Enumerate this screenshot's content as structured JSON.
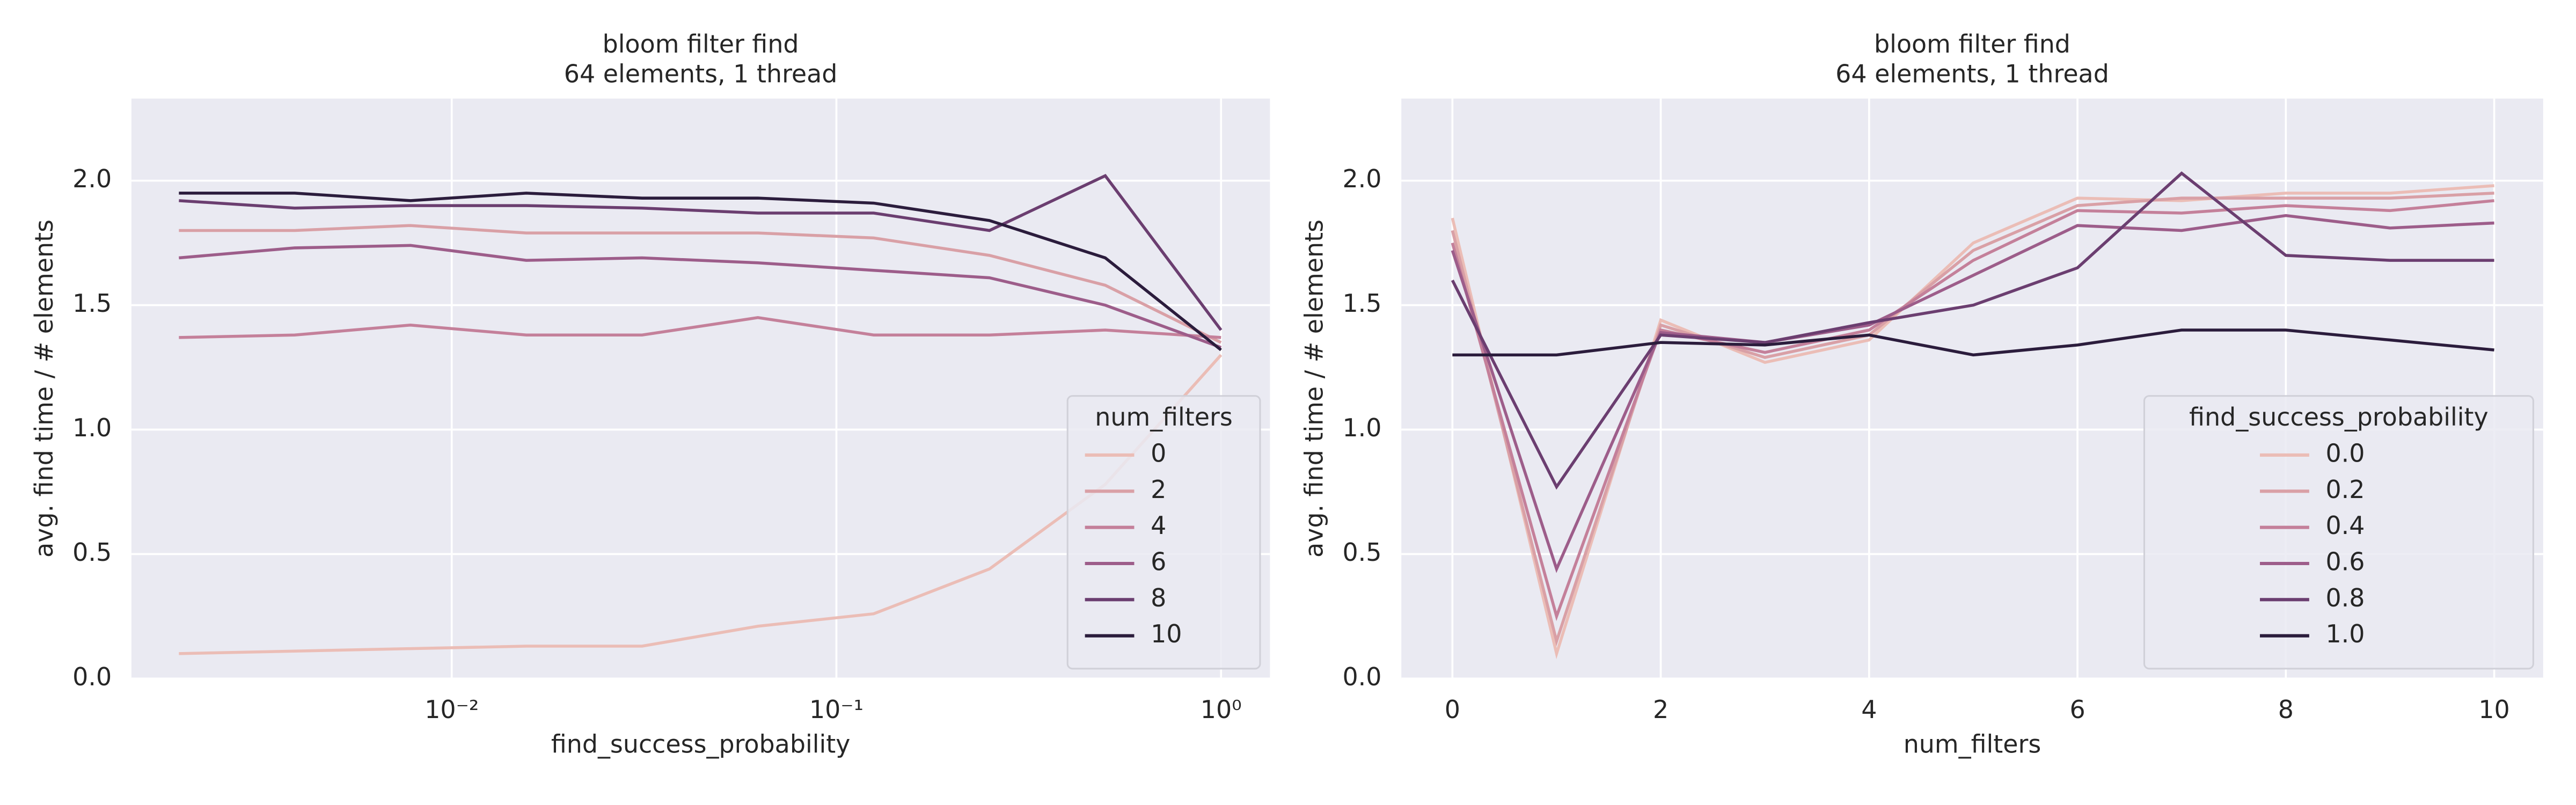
{
  "chart_data": [
    {
      "type": "line",
      "title": "bloom filter find",
      "subtitle": "64 elements, 1 thread",
      "xlabel": "find_success_probability",
      "ylabel": "avg. find time / # elements",
      "xscale": "log",
      "grid": true,
      "legend": "lower right",
      "legend_title": "num_filters",
      "x": [
        0.001953125,
        0.00390625,
        0.0078125,
        0.015625,
        0.03125,
        0.0625,
        0.125,
        0.25,
        0.5,
        1
      ],
      "xlim": [
        0.00147,
        1.34
      ],
      "xticks": [
        {
          "value": 0.01,
          "label": "10⁻²"
        },
        {
          "value": 0.1,
          "label": "10⁻¹"
        },
        {
          "value": 1,
          "label": "10⁰"
        }
      ],
      "ylim": [
        0,
        2.33
      ],
      "yticks": [
        {
          "value": 0,
          "label": "0.0"
        },
        0.5,
        {
          "value": 1,
          "label": "1.0"
        },
        1.5,
        {
          "value": 2,
          "label": "2.0"
        }
      ],
      "series": [
        {
          "name": "0",
          "color": "#ebbdb6",
          "values": [
            0.1,
            0.11,
            0.12,
            0.13,
            0.13,
            0.21,
            0.26,
            0.44,
            0.78,
            1.3
          ]
        },
        {
          "name": "2",
          "color": "#d9a0a6",
          "values": [
            1.8,
            1.8,
            1.82,
            1.79,
            1.79,
            1.79,
            1.77,
            1.7,
            1.58,
            1.35
          ]
        },
        {
          "name": "4",
          "color": "#c4809a",
          "values": [
            1.37,
            1.38,
            1.42,
            1.38,
            1.38,
            1.45,
            1.38,
            1.38,
            1.4,
            1.37
          ]
        },
        {
          "name": "6",
          "color": "#9d5d8a",
          "values": [
            1.69,
            1.73,
            1.74,
            1.68,
            1.69,
            1.67,
            1.64,
            1.61,
            1.5,
            1.33
          ]
        },
        {
          "name": "8",
          "color": "#6b3e70",
          "values": [
            1.92,
            1.89,
            1.9,
            1.9,
            1.89,
            1.87,
            1.87,
            1.8,
            2.02,
            1.4
          ]
        },
        {
          "name": "10",
          "color": "#2b1c3c",
          "values": [
            1.95,
            1.95,
            1.92,
            1.95,
            1.93,
            1.93,
            1.91,
            1.84,
            1.69,
            1.32
          ]
        }
      ]
    },
    {
      "type": "line",
      "title": "bloom filter find",
      "subtitle": "64 elements, 1 thread",
      "xlabel": "num_filters",
      "ylabel": "avg. find time / # elements",
      "grid": true,
      "legend": "lower right",
      "legend_title": "find_success_probability",
      "x": [
        0,
        1,
        2,
        3,
        4,
        5,
        6,
        7,
        8,
        9,
        10
      ],
      "xlim": [
        -0.49,
        10.47
      ],
      "xticks": [
        0,
        2,
        4,
        6,
        8,
        10
      ],
      "ylim": [
        0,
        2.33
      ],
      "yticks": [
        {
          "value": 0,
          "label": "0.0"
        },
        0.5,
        {
          "value": 1,
          "label": "1.0"
        },
        1.5,
        {
          "value": 2,
          "label": "2.0"
        }
      ],
      "series": [
        {
          "name": "0.0",
          "color": "#ebbdb6",
          "values": [
            1.85,
            0.1,
            1.44,
            1.27,
            1.36,
            1.75,
            1.93,
            1.92,
            1.95,
            1.95,
            1.98
          ]
        },
        {
          "name": "0.2",
          "color": "#d9a0a6",
          "values": [
            1.8,
            0.15,
            1.42,
            1.29,
            1.38,
            1.72,
            1.9,
            1.93,
            1.93,
            1.93,
            1.95
          ]
        },
        {
          "name": "0.4",
          "color": "#c4809a",
          "values": [
            1.75,
            0.25,
            1.4,
            1.31,
            1.4,
            1.68,
            1.88,
            1.87,
            1.9,
            1.88,
            1.92
          ]
        },
        {
          "name": "0.6",
          "color": "#9d5d8a",
          "values": [
            1.72,
            0.44,
            1.39,
            1.35,
            1.42,
            1.62,
            1.82,
            1.8,
            1.86,
            1.81,
            1.83
          ]
        },
        {
          "name": "0.8",
          "color": "#6b3e70",
          "values": [
            1.6,
            0.77,
            1.38,
            1.35,
            1.43,
            1.5,
            1.65,
            2.03,
            1.7,
            1.68,
            1.68
          ]
        },
        {
          "name": "1.0",
          "color": "#2b1c3c",
          "values": [
            1.3,
            1.3,
            1.35,
            1.34,
            1.38,
            1.3,
            1.34,
            1.4,
            1.4,
            1.36,
            1.32
          ]
        }
      ]
    }
  ]
}
